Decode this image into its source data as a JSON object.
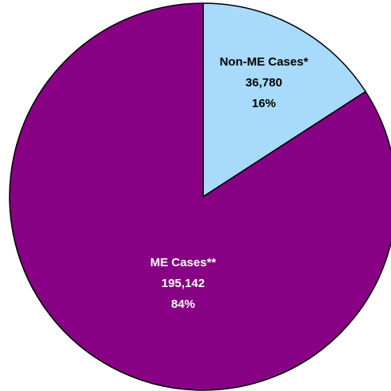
{
  "chart_data": {
    "type": "pie",
    "categories": [
      "Non-ME Cases*",
      "ME Cases**"
    ],
    "values": [
      36780,
      195142
    ],
    "value_labels": [
      "36,780",
      "195,142"
    ],
    "percents": [
      16,
      84
    ],
    "percent_labels": [
      "16%",
      "84%"
    ],
    "colors": [
      "#a8dafc",
      "#880084"
    ],
    "label_colors": [
      "#000000",
      "#ffffff"
    ]
  }
}
